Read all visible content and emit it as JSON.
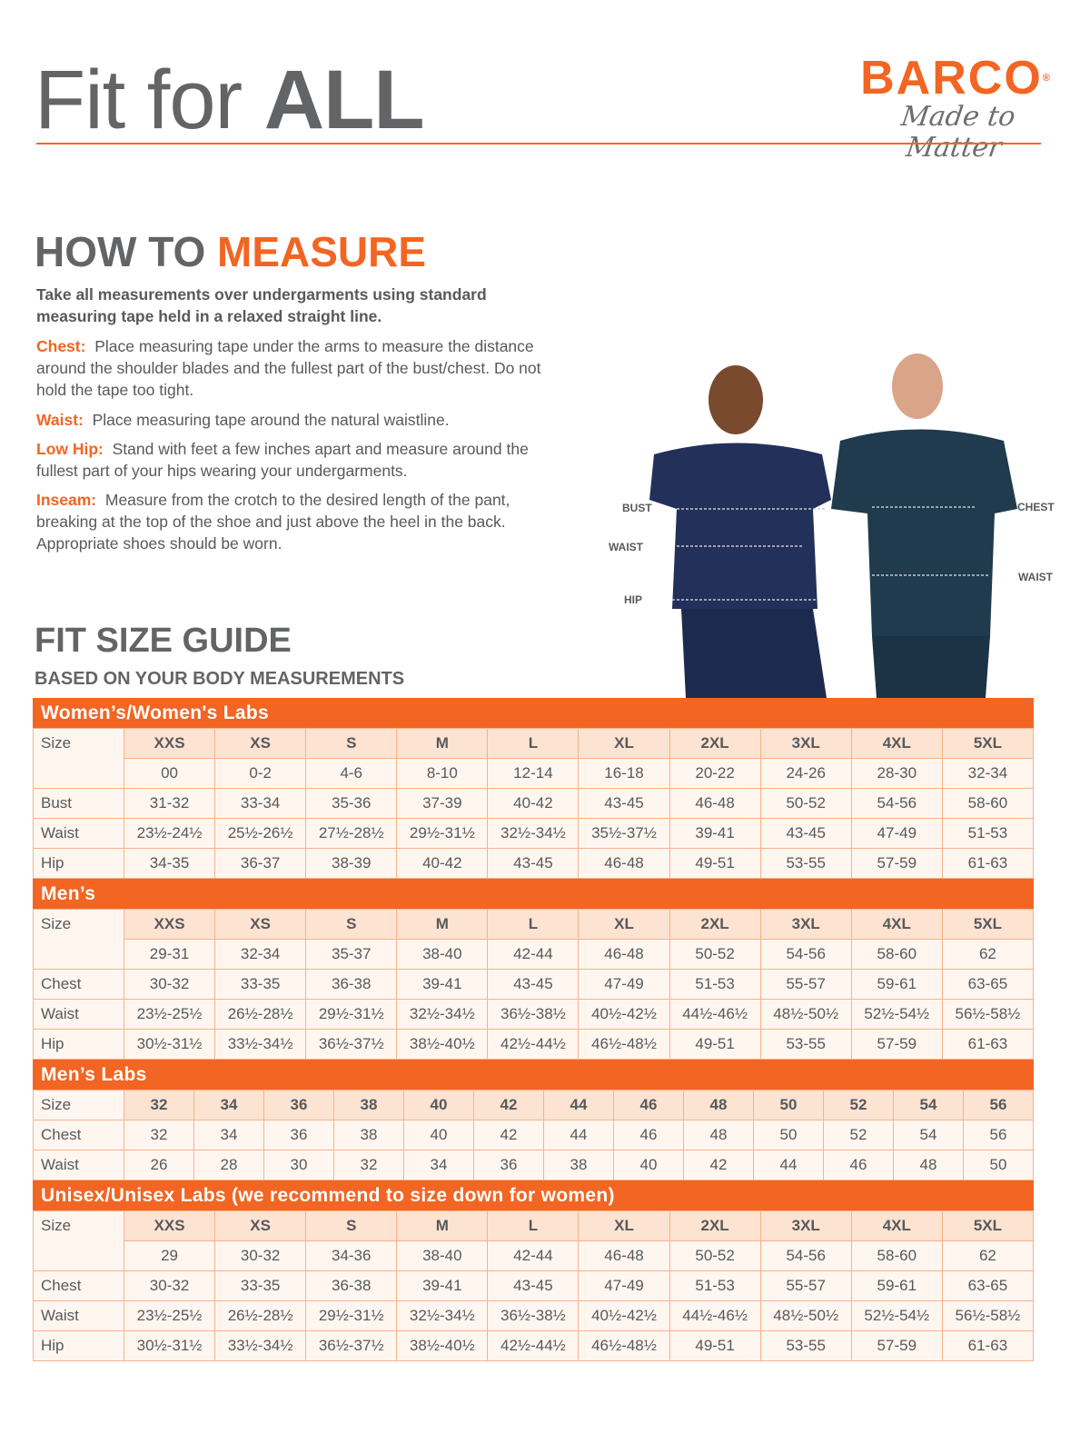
{
  "header": {
    "title_light": "Fit for ",
    "title_bold": "ALL",
    "brand": "BARCO",
    "brand_mark": "®",
    "tagline": "Made to Matter"
  },
  "how_to_measure": {
    "title_gray": "HOW TO ",
    "title_orange": "MEASURE",
    "intro": "Take all measurements over undergarments using standard measuring tape held in a relaxed straight line.",
    "items": [
      {
        "label": "Chest:",
        "text": "Place measuring tape under the arms to measure the distance around the shoulder blades and the fullest part of the bust/chest. Do not hold the tape too tight."
      },
      {
        "label": "Waist:",
        "text": "Place measuring tape around the natural waistline."
      },
      {
        "label": "Low Hip:",
        "text": "Stand with feet a few inches apart and measure around the fullest part of your hips wearing your undergarments."
      },
      {
        "label": "Inseam:",
        "text": "Measure from the crotch to the desired length of the pant, breaking at the top of the shoe and just above the heel in the back. Appropriate shoes should be worn."
      }
    ]
  },
  "photo": {
    "labels": {
      "bust": "BUST",
      "waist_w": "WAIST",
      "hip": "HIP",
      "chest": "CHEST",
      "waist_m": "WAIST"
    },
    "scrub_color": "#1f2d52"
  },
  "guide": {
    "title": "FIT SIZE GUIDE",
    "subtitle": "BASED ON YOUR BODY MEASUREMENTS",
    "sections": [
      {
        "title": "Women’s/Women's Labs",
        "size_label": "Size",
        "sizes": [
          "XXS",
          "XS",
          "S",
          "M",
          "L",
          "XL",
          "2XL",
          "3XL",
          "4XL",
          "5XL"
        ],
        "numeric": [
          "00",
          "0-2",
          "4-6",
          "8-10",
          "12-14",
          "16-18",
          "20-22",
          "24-26",
          "28-30",
          "32-34"
        ],
        "rows": [
          {
            "label": "Bust",
            "values": [
              "31-32",
              "33-34",
              "35-36",
              "37-39",
              "40-42",
              "43-45",
              "46-48",
              "50-52",
              "54-56",
              "58-60"
            ]
          },
          {
            "label": "Waist",
            "values": [
              "23½-24½",
              "25½-26½",
              "27½-28½",
              "29½-31½",
              "32½-34½",
              "35½-37½",
              "39-41",
              "43-45",
              "47-49",
              "51-53"
            ]
          },
          {
            "label": "Hip",
            "values": [
              "34-35",
              "36-37",
              "38-39",
              "40-42",
              "43-45",
              "46-48",
              "49-51",
              "53-55",
              "57-59",
              "61-63"
            ]
          }
        ]
      },
      {
        "title": "Men’s",
        "size_label": "Size",
        "sizes": [
          "XXS",
          "XS",
          "S",
          "M",
          "L",
          "XL",
          "2XL",
          "3XL",
          "4XL",
          "5XL"
        ],
        "numeric": [
          "29-31",
          "32-34",
          "35-37",
          "38-40",
          "42-44",
          "46-48",
          "50-52",
          "54-56",
          "58-60",
          "62"
        ],
        "rows": [
          {
            "label": "Chest",
            "values": [
              "30-32",
              "33-35",
              "36-38",
              "39-41",
              "43-45",
              "47-49",
              "51-53",
              "55-57",
              "59-61",
              "63-65"
            ]
          },
          {
            "label": "Waist",
            "values": [
              "23½-25½",
              "26½-28½",
              "29½-31½",
              "32½-34½",
              "36½-38½",
              "40½-42½",
              "44½-46½",
              "48½-50½",
              "52½-54½",
              "56½-58½"
            ]
          },
          {
            "label": "Hip",
            "values": [
              "30½-31½",
              "33½-34½",
              "36½-37½",
              "38½-40½",
              "42½-44½",
              "46½-48½",
              "49-51",
              "53-55",
              "57-59",
              "61-63"
            ]
          }
        ]
      },
      {
        "title": "Men’s Labs",
        "size_label": "Size",
        "sizes": [
          "32",
          "34",
          "36",
          "38",
          "40",
          "42",
          "44",
          "46",
          "48",
          "50",
          "52",
          "54",
          "56"
        ],
        "rows": [
          {
            "label": "Chest",
            "values": [
              "32",
              "34",
              "36",
              "38",
              "40",
              "42",
              "44",
              "46",
              "48",
              "50",
              "52",
              "54",
              "56"
            ]
          },
          {
            "label": "Waist",
            "values": [
              "26",
              "28",
              "30",
              "32",
              "34",
              "36",
              "38",
              "40",
              "42",
              "44",
              "46",
              "48",
              "50"
            ]
          }
        ]
      },
      {
        "title": "Unisex/Unisex Labs (we recommend to size down for women)",
        "size_label": "Size",
        "sizes": [
          "XXS",
          "XS",
          "S",
          "M",
          "L",
          "XL",
          "2XL",
          "3XL",
          "4XL",
          "5XL"
        ],
        "numeric": [
          "29",
          "30-32",
          "34-36",
          "38-40",
          "42-44",
          "46-48",
          "50-52",
          "54-56",
          "58-60",
          "62"
        ],
        "rows": [
          {
            "label": "Chest",
            "values": [
              "30-32",
              "33-35",
              "36-38",
              "39-41",
              "43-45",
              "47-49",
              "51-53",
              "55-57",
              "59-61",
              "63-65"
            ]
          },
          {
            "label": "Waist",
            "values": [
              "23½-25½",
              "26½-28½",
              "29½-31½",
              "32½-34½",
              "36½-38½",
              "40½-42½",
              "44½-46½",
              "48½-50½",
              "52½-54½",
              "56½-58½"
            ]
          },
          {
            "label": "Hip",
            "values": [
              "30½-31½",
              "33½-34½",
              "36½-37½",
              "38½-40½",
              "42½-44½",
              "46½-48½",
              "49-51",
              "53-55",
              "57-59",
              "61-63"
            ]
          }
        ]
      }
    ]
  },
  "colors": {
    "accent": "#f26522",
    "text": "#58595b",
    "header_cell": "#fde3d2",
    "cell": "#fff6f0",
    "border": "#f7b28a"
  }
}
